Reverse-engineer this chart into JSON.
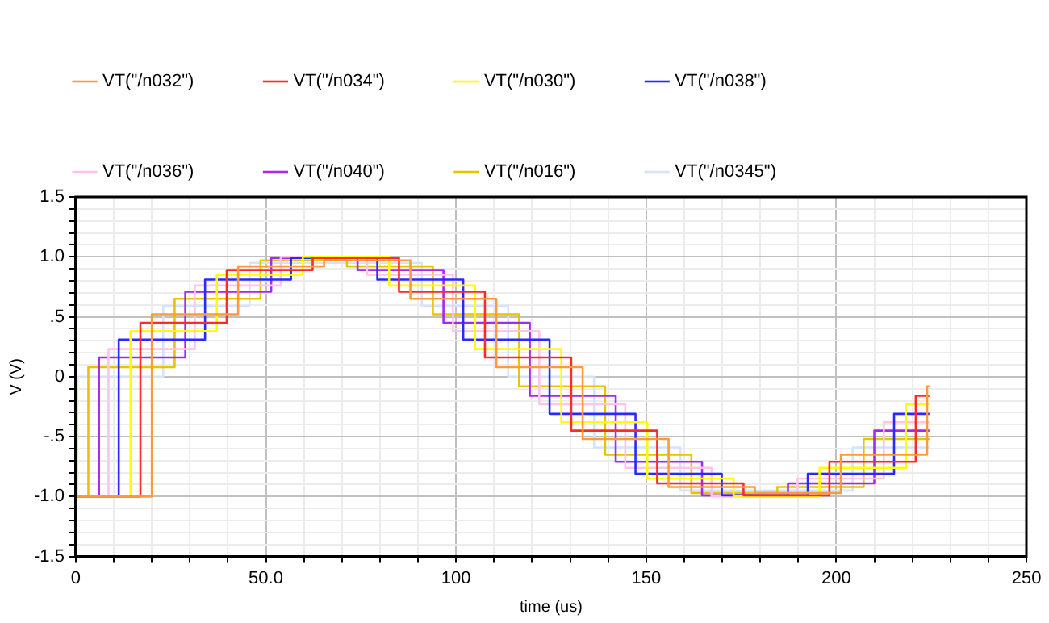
{
  "chart_data": {
    "type": "step",
    "xlabel": "time (us)",
    "ylabel": "V (V)",
    "xlim": [
      0,
      250
    ],
    "ylim": [
      -1.5,
      1.5
    ],
    "xticks": [
      0,
      {
        "value": 10,
        "label": null
      },
      {
        "value": 20,
        "label": null
      },
      {
        "value": 30,
        "label": null
      },
      {
        "value": 40,
        "label": null
      },
      {
        "value": 50,
        "label": "50.0"
      },
      {
        "value": 60,
        "label": null
      },
      {
        "value": 70,
        "label": null
      },
      {
        "value": 80,
        "label": null
      },
      {
        "value": 90,
        "label": null
      },
      100,
      {
        "value": 110,
        "label": null
      },
      {
        "value": 120,
        "label": null
      },
      {
        "value": 130,
        "label": null
      },
      {
        "value": 140,
        "label": null
      },
      150,
      {
        "value": 160,
        "label": null
      },
      {
        "value": 170,
        "label": null
      },
      {
        "value": 180,
        "label": null
      },
      {
        "value": 190,
        "label": null
      },
      200,
      {
        "value": 210,
        "label": null
      },
      {
        "value": 220,
        "label": null
      },
      {
        "value": 230,
        "label": null
      },
      {
        "value": 240,
        "label": null
      },
      250
    ],
    "yticks": [
      -1.5,
      {
        "value": -1.4,
        "label": null
      },
      {
        "value": -1.3,
        "label": null
      },
      {
        "value": -1.2,
        "label": null
      },
      {
        "value": -1.1,
        "label": null
      },
      {
        "value": -1.0,
        "label": "-1.0"
      },
      {
        "value": -0.9,
        "label": null
      },
      {
        "value": -0.8,
        "label": null
      },
      {
        "value": -0.7,
        "label": null
      },
      {
        "value": -0.6,
        "label": null
      },
      {
        "value": -0.5,
        "label": "-.5"
      },
      {
        "value": -0.4,
        "label": null
      },
      {
        "value": -0.3,
        "label": null
      },
      {
        "value": -0.2,
        "label": null
      },
      {
        "value": -0.1,
        "label": null
      },
      0,
      {
        "value": 0.1,
        "label": null
      },
      {
        "value": 0.2,
        "label": null
      },
      {
        "value": 0.3,
        "label": null
      },
      {
        "value": 0.4,
        "label": null
      },
      {
        "value": 0.5,
        "label": ".5"
      },
      {
        "value": 0.6,
        "label": null
      },
      {
        "value": 0.7,
        "label": null
      },
      {
        "value": 0.8,
        "label": null
      },
      {
        "value": 0.9,
        "label": null
      },
      {
        "value": 1.0,
        "label": "1.0"
      },
      {
        "value": 1.1,
        "label": null
      },
      {
        "value": 1.2,
        "label": null
      },
      {
        "value": 1.3,
        "label": null
      },
      {
        "value": 1.4,
        "label": null
      },
      1.5
    ],
    "grid": true,
    "legend": "top",
    "marker": "none",
    "line_style": "solid",
    "series": [
      {
        "name": "VT(\"/n032\")",
        "color": "#ff9a3c",
        "x": [
          0,
          20.0,
          42.7,
          65.3,
          88.0,
          110.6,
          133.3,
          155.9,
          178.6,
          201.2,
          223.9,
          224.5
        ],
        "values": [
          -1,
          0.52,
          0.92,
          0.97,
          0.65,
          0.08,
          -0.52,
          -0.92,
          -0.97,
          -0.65,
          -0.08,
          -0.08
        ]
      },
      {
        "name": "VT(\"/n034\")",
        "color": "#ff2a2a",
        "x": [
          0,
          17.0,
          39.7,
          62.3,
          85.0,
          107.6,
          130.3,
          152.9,
          175.6,
          198.2,
          220.9,
          224.5
        ],
        "values": [
          -1,
          0.45,
          0.89,
          0.99,
          0.71,
          0.16,
          -0.45,
          -0.89,
          -0.99,
          -0.71,
          -0.16,
          -0.16
        ]
      },
      {
        "name": "VT(\"/n030\")",
        "color": "#ffff00",
        "x": [
          0,
          14.4,
          37.1,
          59.7,
          82.4,
          105.0,
          127.7,
          150.3,
          173.0,
          195.6,
          218.3,
          224.5
        ],
        "values": [
          -1,
          0.38,
          0.85,
          1.0,
          0.76,
          0.23,
          -0.38,
          -0.85,
          -1.0,
          -0.76,
          -0.23,
          -0.23
        ]
      },
      {
        "name": "VT(\"/n038\")",
        "color": "#2a2aff",
        "x": [
          0,
          11.3,
          34.0,
          56.6,
          79.3,
          101.9,
          124.6,
          147.2,
          169.9,
          192.5,
          215.2,
          224.5
        ],
        "values": [
          -1,
          0.31,
          0.81,
          0.99,
          0.81,
          0.31,
          -0.31,
          -0.81,
          -0.99,
          -0.81,
          -0.31,
          -0.31
        ]
      },
      {
        "name": "VT(\"/n036\")",
        "color": "#ffc4ec",
        "x": [
          0,
          8.6,
          31.3,
          53.9,
          76.6,
          99.2,
          121.9,
          144.5,
          167.2,
          189.8,
          212.5,
          224.5
        ],
        "values": [
          -1,
          0.23,
          0.76,
          1.0,
          0.85,
          0.38,
          -0.23,
          -0.76,
          -1.0,
          -0.85,
          -0.38,
          -0.38
        ]
      },
      {
        "name": "VT(\"/n040\")",
        "color": "#a52af0",
        "x": [
          0,
          6.1,
          28.8,
          51.4,
          74.1,
          96.7,
          119.4,
          142.0,
          164.7,
          187.3,
          210.0,
          224.5
        ],
        "values": [
          -1,
          0.16,
          0.71,
          0.99,
          0.89,
          0.45,
          -0.16,
          -0.71,
          -0.99,
          -0.89,
          -0.45,
          -0.45
        ]
      },
      {
        "name": "VT(\"/n016\")",
        "color": "#e6c400",
        "x": [
          0,
          3.3,
          26.0,
          48.6,
          71.3,
          93.9,
          116.6,
          139.2,
          161.9,
          184.5,
          207.2,
          224.5
        ],
        "values": [
          -1,
          0.08,
          0.65,
          0.97,
          0.92,
          0.52,
          -0.08,
          -0.65,
          -0.97,
          -0.92,
          -0.52,
          -0.52
        ]
      },
      {
        "name": "VT(\"/n0345\")",
        "color": "#d4e4ff",
        "x": [
          0,
          0.4,
          23.0,
          45.7,
          68.4,
          91.0,
          113.7,
          136.3,
          159.0,
          181.6,
          204.3,
          224.5
        ],
        "values": [
          -1,
          0,
          0.59,
          0.95,
          0.95,
          0.59,
          0,
          -0.59,
          -0.95,
          -0.95,
          -0.59,
          -0.59
        ]
      }
    ]
  }
}
